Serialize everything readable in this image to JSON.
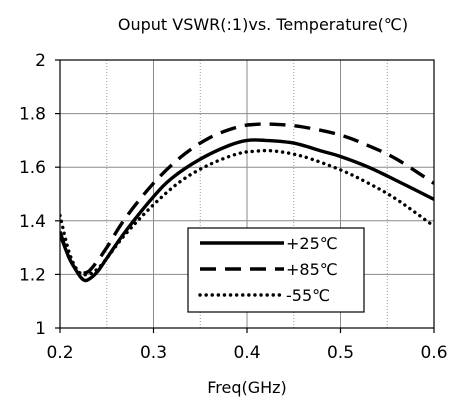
{
  "chart_data": {
    "type": "line",
    "title": "Ouput VSWR(:1)vs. Temperature(℃)",
    "xlabel": "Freq(GHz)",
    "ylabel": "",
    "xlim": [
      0.2,
      0.6
    ],
    "ylim": [
      1,
      2
    ],
    "xticks": [
      "0.2",
      "0.3",
      "0.4",
      "0.5",
      "0.6"
    ],
    "yticks": [
      "1",
      "1.2",
      "1.4",
      "1.6",
      "1.8",
      "2"
    ],
    "x_minor_grid": [
      0.25,
      0.35,
      0.45,
      0.55
    ],
    "grid": true,
    "legend_position": "bottom-center",
    "series": [
      {
        "name": "+25℃",
        "style": "solid",
        "color": "#000000",
        "x": [
          0.2,
          0.21,
          0.22,
          0.225,
          0.23,
          0.24,
          0.25,
          0.27,
          0.3,
          0.32,
          0.35,
          0.38,
          0.4,
          0.42,
          0.45,
          0.48,
          0.5,
          0.53,
          0.56,
          0.6
        ],
        "y": [
          1.35,
          1.26,
          1.2,
          1.18,
          1.18,
          1.21,
          1.26,
          1.36,
          1.49,
          1.56,
          1.63,
          1.68,
          1.7,
          1.7,
          1.69,
          1.66,
          1.64,
          1.6,
          1.55,
          1.48
        ]
      },
      {
        "name": "+85℃",
        "style": "dashed",
        "color": "#000000",
        "x": [
          0.2,
          0.21,
          0.22,
          0.23,
          0.24,
          0.25,
          0.27,
          0.3,
          0.33,
          0.36,
          0.39,
          0.41,
          0.43,
          0.46,
          0.5,
          0.53,
          0.56,
          0.6
        ],
        "y": [
          1.36,
          1.26,
          1.21,
          1.21,
          1.25,
          1.3,
          1.41,
          1.54,
          1.64,
          1.71,
          1.75,
          1.76,
          1.76,
          1.75,
          1.72,
          1.68,
          1.63,
          1.54
        ]
      },
      {
        "name": "-55℃",
        "style": "dotted",
        "color": "#000000",
        "x": [
          0.2,
          0.21,
          0.22,
          0.23,
          0.24,
          0.25,
          0.27,
          0.3,
          0.33,
          0.36,
          0.39,
          0.41,
          0.43,
          0.46,
          0.5,
          0.53,
          0.56,
          0.6
        ],
        "y": [
          1.42,
          1.28,
          1.21,
          1.2,
          1.22,
          1.26,
          1.35,
          1.46,
          1.55,
          1.61,
          1.65,
          1.66,
          1.66,
          1.64,
          1.59,
          1.54,
          1.48,
          1.38
        ]
      }
    ]
  }
}
